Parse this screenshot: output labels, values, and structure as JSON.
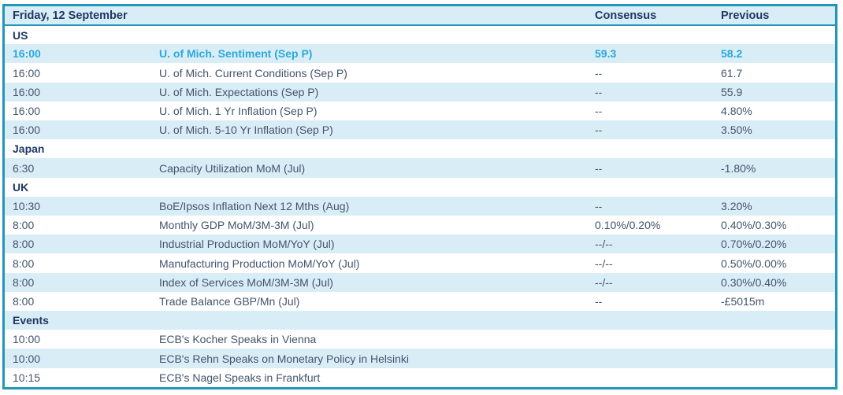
{
  "table": {
    "title": "Friday, 12 September",
    "columns": {
      "time": "",
      "event": "",
      "consensus": "Consensus",
      "previous": "Previous"
    },
    "colors": {
      "border": "#2394BA",
      "header_text": "#1F3864",
      "body_text": "#44546A",
      "highlight_text": "#29A9DC",
      "row_alt_bg": "#D9EDF7",
      "row_bg": "#FFFFFF"
    },
    "rows": [
      {
        "type": "section",
        "label": "US"
      },
      {
        "type": "event",
        "highlight": true,
        "time": "16:00",
        "event": "U. of Mich. Sentiment (Sep P)",
        "consensus": "59.3",
        "previous": "58.2"
      },
      {
        "type": "event",
        "time": "16:00",
        "event": "U. of Mich. Current Conditions (Sep P)",
        "consensus": "--",
        "previous": "61.7"
      },
      {
        "type": "event",
        "time": "16:00",
        "event": "U. of Mich. Expectations (Sep P)",
        "consensus": "--",
        "previous": "55.9"
      },
      {
        "type": "event",
        "time": "16:00",
        "event": "U. of Mich. 1 Yr Inflation (Sep P)",
        "consensus": "--",
        "previous": "4.80%"
      },
      {
        "type": "event",
        "time": "16:00",
        "event": "U. of Mich. 5-10 Yr Inflation (Sep P)",
        "consensus": "--",
        "previous": "3.50%"
      },
      {
        "type": "section",
        "label": "Japan"
      },
      {
        "type": "event",
        "time": "6:30",
        "event": "Capacity Utilization MoM (Jul)",
        "consensus": "--",
        "previous": "-1.80%"
      },
      {
        "type": "section",
        "label": "UK"
      },
      {
        "type": "event",
        "time": "10:30",
        "event": "BoE/Ipsos Inflation Next 12 Mths (Aug)",
        "consensus": "--",
        "previous": "3.20%"
      },
      {
        "type": "event",
        "time": "8:00",
        "event": "Monthly GDP MoM/3M-3M (Jul)",
        "consensus": "0.10%/0.20%",
        "previous": "0.40%/0.30%"
      },
      {
        "type": "event",
        "time": "8:00",
        "event": "Industrial Production MoM/YoY (Jul)",
        "consensus": "--/--",
        "previous": "0.70%/0.20%"
      },
      {
        "type": "event",
        "time": "8:00",
        "event": "Manufacturing Production MoM/YoY (Jul)",
        "consensus": "--/--",
        "previous": "0.50%/0.00%"
      },
      {
        "type": "event",
        "time": "8:00",
        "event": "Index of Services MoM/3M-3M (Jul)",
        "consensus": "--/--",
        "previous": "0.30%/0.40%"
      },
      {
        "type": "event",
        "time": "8:00",
        "event": "Trade Balance GBP/Mn (Jul)",
        "consensus": "--",
        "previous": "-£5015m"
      },
      {
        "type": "section",
        "label": "Events"
      },
      {
        "type": "event",
        "time": "10:00",
        "event": "ECB's Kocher Speaks in Vienna",
        "consensus": "",
        "previous": ""
      },
      {
        "type": "event",
        "time": "10:00",
        "event": "ECB's Rehn Speaks on Monetary Policy in Helsinki",
        "consensus": "",
        "previous": ""
      },
      {
        "type": "event",
        "time": "10:15",
        "event": "ECB's Nagel Speaks in Frankfurt",
        "consensus": "",
        "previous": ""
      }
    ]
  }
}
